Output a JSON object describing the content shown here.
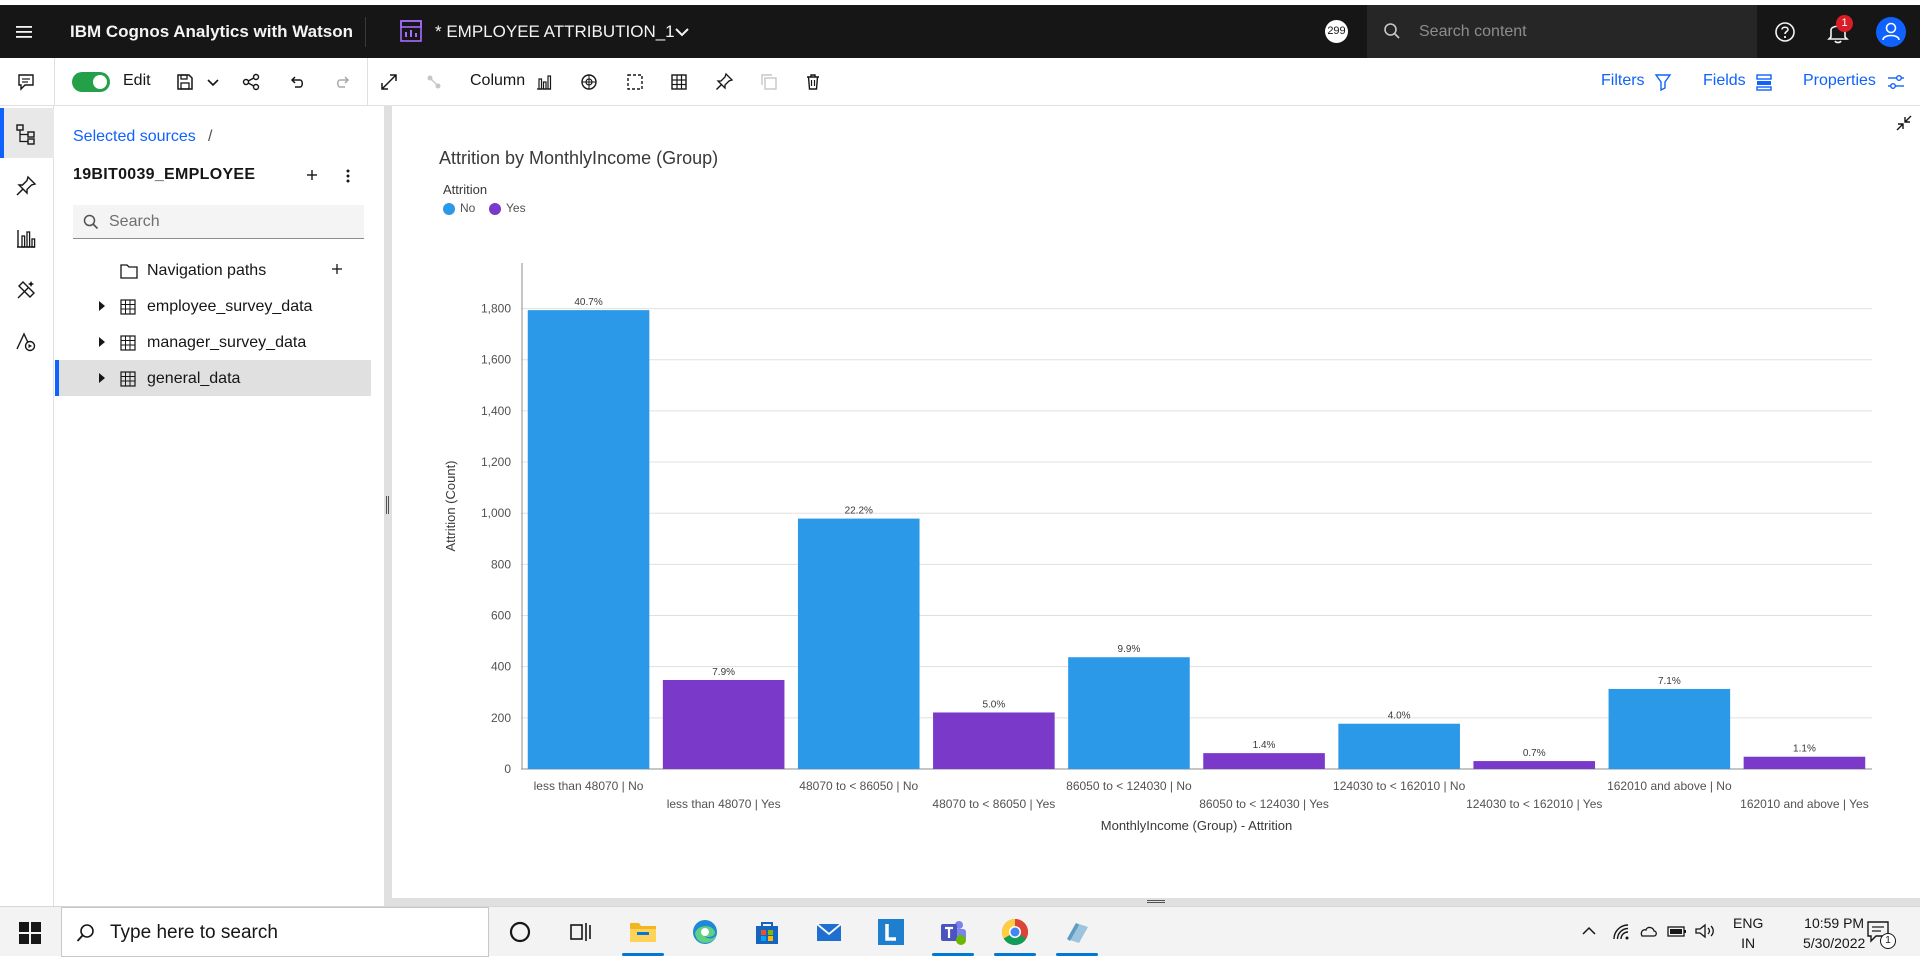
{
  "topbar": {
    "app_name": "IBM Cognos Analytics with Watson",
    "report_title": "* EMPLOYEE ATTRIBUTION_1",
    "counter_badge": "299",
    "search_placeholder": "Search content",
    "notification_count": "1"
  },
  "toolbar": {
    "edit_label": "Edit",
    "viz_type_label": "Column",
    "filters_label": "Filters",
    "fields_label": "Fields",
    "properties_label": "Properties"
  },
  "source_panel": {
    "breadcrumb": "Selected sources",
    "breadcrumb_sep": "/",
    "source_name": "19BIT0039_EMPLOYEE",
    "search_placeholder": "Search",
    "items": [
      {
        "label": "Navigation paths",
        "icon": "folder-icon"
      },
      {
        "label": "employee_survey_data",
        "icon": "table-icon"
      },
      {
        "label": "manager_survey_data",
        "icon": "table-icon"
      },
      {
        "label": "general_data",
        "icon": "table-icon"
      }
    ]
  },
  "chart_data": {
    "type": "bar",
    "title": "Attrition by MonthlyIncome (Group)",
    "legend_title": "Attrition",
    "legend": [
      {
        "name": "No",
        "color": "#2b99e8"
      },
      {
        "name": "Yes",
        "color": "#7a39c9"
      }
    ],
    "xlabel": "MonthlyIncome (Group) - Attrition",
    "ylabel": "Attrition (Count)",
    "ylim": [
      0,
      1900
    ],
    "yticks": [
      0,
      200,
      400,
      600,
      800,
      1000,
      1200,
      1400,
      1600,
      1800
    ],
    "ytick_labels": [
      "0",
      "200",
      "400",
      "600",
      "800",
      "1,000",
      "1,200",
      "1,400",
      "1,600",
      "1,800"
    ],
    "grid": true,
    "categories": [
      "less than 48070 | No",
      "less than 48070 | Yes",
      "48070 to < 86050 | No",
      "48070 to < 86050 | Yes",
      "86050 to < 124030 | No",
      "86050 to < 124030 | Yes",
      "124030 to < 162010 | No",
      "124030 to < 162010 | Yes",
      "162010 and above | No",
      "162010 and above | Yes"
    ],
    "series_of": [
      "No",
      "Yes",
      "No",
      "Yes",
      "No",
      "Yes",
      "No",
      "Yes",
      "No",
      "Yes"
    ],
    "values": [
      1794,
      348,
      979,
      221,
      437,
      62,
      177,
      31,
      313,
      48
    ],
    "data_labels": [
      "40.7%",
      "7.9%",
      "22.2%",
      "5.0%",
      "9.9%",
      "1.4%",
      "4.0%",
      "0.7%",
      "7.1%",
      "1.1%"
    ]
  },
  "taskbar": {
    "search_placeholder": "Type here to search",
    "lang_top": "ENG",
    "lang_bottom": "IN",
    "time": "10:59 PM",
    "date": "5/30/2022",
    "notif_count": "1",
    "apps": [
      "cortana-icon",
      "task-view-icon",
      "file-explorer-icon",
      "edge-icon",
      "store-icon",
      "mail-icon",
      "l-app-icon",
      "teams-icon",
      "chrome-icon",
      "app-icon"
    ]
  }
}
